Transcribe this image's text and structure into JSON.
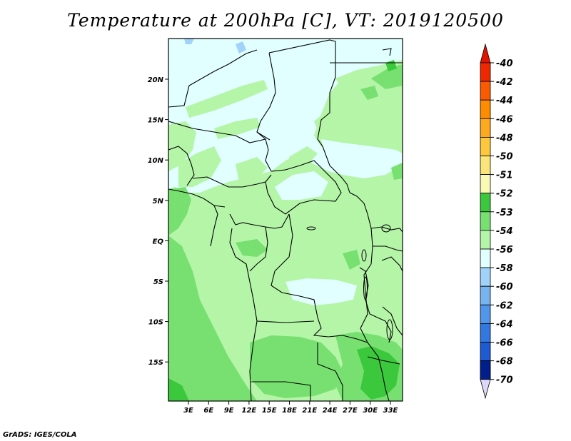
{
  "title": "Temperature at 200hPa [C], VT: 2019120500",
  "credit": "GrADS: IGES/COLA",
  "map": {
    "lon_labels": [
      "3E",
      "6E",
      "9E",
      "12E",
      "15E",
      "18E",
      "21E",
      "24E",
      "27E",
      "30E",
      "33E"
    ],
    "lat_labels": [
      "20N",
      "15N",
      "10N",
      "5N",
      "EQ",
      "5S",
      "10S",
      "15S"
    ],
    "colors": {
      "land_lightest": "#e0fffe",
      "light_green": "#b4f5a8",
      "mid_green": "#78e070",
      "dark_green": "#3cc83c",
      "light_blue": "#a0d2fa",
      "border": "#000000"
    }
  },
  "colorbar": {
    "labels": [
      "-40",
      "-42",
      "-44",
      "-46",
      "-48",
      "-50",
      "-51",
      "-52",
      "-53",
      "-54",
      "-56",
      "-58",
      "-60",
      "-62",
      "-64",
      "-66",
      "-68",
      "-70"
    ],
    "colors": [
      "#f02800",
      "#fa5a00",
      "#ff8c00",
      "#ffaa1e",
      "#ffc83c",
      "#fae678",
      "#fafab4",
      "#3cc83c",
      "#78e070",
      "#b4f5a8",
      "#e0fffe",
      "#a0d2fa",
      "#78b4f0",
      "#5096ea",
      "#3278e0",
      "#1e5ad2",
      "#0a3cbe",
      "#001e8c"
    ],
    "top_arrow_color": "#e11400",
    "bottom_arrow_color": "#dcd8f8"
  }
}
